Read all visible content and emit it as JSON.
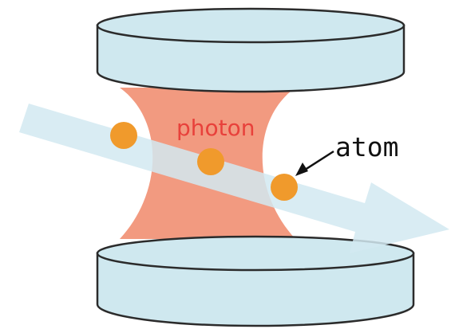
{
  "labels": {
    "photon": "photon",
    "atom": "atom"
  },
  "colors": {
    "mirror_fill": "#cfe8ef",
    "mirror_outline": "#2b2b2b",
    "cavity_field": "#f29a80",
    "beam": "#d2e9f1",
    "atom": "#f09a2c",
    "photon_label": "#e8413b",
    "atom_label": "#111111"
  },
  "icons": {
    "beam": "arrow-shape",
    "atom": "filled-circle"
  },
  "atom_count": 3
}
